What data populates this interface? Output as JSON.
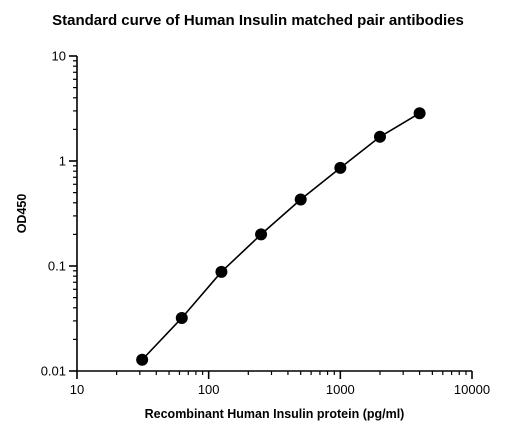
{
  "chart_data": {
    "type": "scatter",
    "title": "Standard curve of Human Insulin matched pair antibodies",
    "xlabel": "Recombinant Human Insulin protein (pg/ml)",
    "ylabel": "OD450",
    "x_scale": "log",
    "y_scale": "log",
    "xlim": [
      10,
      10000
    ],
    "ylim": [
      0.01,
      10
    ],
    "x_ticks": [
      10,
      100,
      1000,
      10000
    ],
    "x_tick_labels": [
      "10",
      "100",
      "1000",
      "10000"
    ],
    "y_ticks": [
      0.01,
      0.1,
      1,
      10
    ],
    "y_tick_labels": [
      "0.01",
      "0.1",
      "1",
      "10"
    ],
    "grid": false,
    "legend": "none",
    "connect_points": true,
    "series": [
      {
        "x": [
          31.25,
          62.5,
          125,
          250,
          500,
          1000,
          2000,
          4000
        ],
        "y": [
          0.0128,
          0.032,
          0.088,
          0.2,
          0.43,
          0.86,
          1.7,
          2.85
        ],
        "color": "#000000"
      }
    ]
  }
}
